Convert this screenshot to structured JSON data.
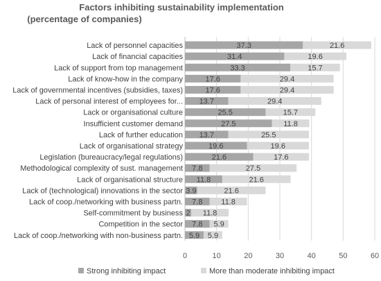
{
  "chart_data": {
    "type": "bar",
    "orientation": "horizontal",
    "stacked": true,
    "title": "Factors inhibiting sustainability implementation\n(percentage of companies)",
    "categories": [
      "Lack of personnel capacities",
      "Lack of financial capacities",
      "Lack of support from top management",
      "Lack of know-how in the company",
      "Lack of governmental incentives (subsidies, taxes)",
      "Lack of personal interest of employees for...",
      "Lack or organisational culture",
      "Insufficient customer demand",
      "Lack of further education",
      "Lack of organisational strategy",
      "Legislation (bureaucracy/legal regulations)",
      "Methodological complexity of sust. management",
      "Lack of organisational structure",
      "Lack of (technological) innovations in the sector",
      "Lack of coop./networking with business partn.",
      "Self-commitment by business",
      "Competition in the sector",
      "Lack of coop./networking with non-business partn."
    ],
    "series": [
      {
        "name": "Strong inhibiting impact",
        "color": "#a6a6a6",
        "values": [
          37.3,
          31.4,
          33.3,
          17.6,
          17.6,
          13.7,
          25.5,
          27.5,
          13.7,
          19.6,
          21.6,
          7.8,
          11.8,
          3.9,
          7.8,
          2,
          7.8,
          5.9
        ]
      },
      {
        "name": "More than moderate inhibiting impact",
        "color": "#d9d9d9",
        "values": [
          21.6,
          19.6,
          15.7,
          29.4,
          29.4,
          29.4,
          15.7,
          11.8,
          25.5,
          19.6,
          17.6,
          27.5,
          21.6,
          21.6,
          11.8,
          11.8,
          5.9,
          5.9
        ]
      }
    ],
    "xlim": [
      0,
      60
    ],
    "xticks": [
      0,
      10,
      20,
      30,
      40,
      50,
      60
    ],
    "grid": true,
    "legend": "bottom",
    "xlabel": "",
    "ylabel": ""
  }
}
